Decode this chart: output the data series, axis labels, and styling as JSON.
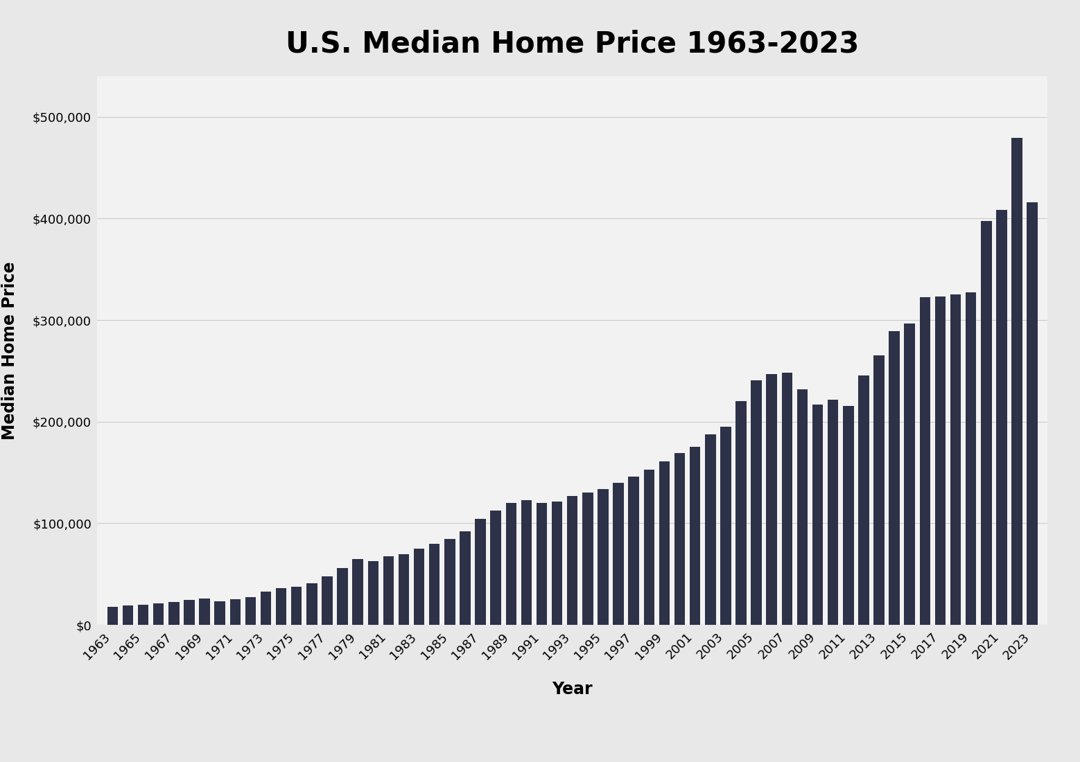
{
  "title": "U.S. Median Home Price 1963-2023",
  "xlabel": "Year",
  "ylabel": "Median Home Price",
  "background_color": "#e8e8e8",
  "plot_background_color": "#f2f2f2",
  "bar_color": "#2e3248",
  "years": [
    1963,
    1964,
    1965,
    1966,
    1967,
    1968,
    1969,
    1970,
    1971,
    1972,
    1973,
    1974,
    1975,
    1976,
    1977,
    1978,
    1979,
    1980,
    1981,
    1982,
    1983,
    1984,
    1985,
    1986,
    1987,
    1988,
    1989,
    1990,
    1991,
    1992,
    1993,
    1994,
    1995,
    1996,
    1997,
    1998,
    1999,
    2000,
    2001,
    2002,
    2003,
    2004,
    2005,
    2006,
    2007,
    2008,
    2009,
    2010,
    2011,
    2012,
    2013,
    2014,
    2015,
    2016,
    2017,
    2018,
    2019,
    2020,
    2021,
    2022,
    2023
  ],
  "prices": [
    18000,
    19300,
    20000,
    21400,
    22700,
    24400,
    25600,
    23400,
    25200,
    27600,
    32500,
    35900,
    37300,
    40800,
    47900,
    55700,
    65000,
    62900,
    67800,
    69300,
    75300,
    80000,
    84300,
    92000,
    104500,
    112500,
    120000,
    122900,
    120000,
    121500,
    126500,
    130000,
    133900,
    140000,
    146000,
    152500,
    161000,
    169000,
    175200,
    187600,
    195000,
    220000,
    240900,
    246500,
    247900,
    232100,
    216700,
    221800,
    215600,
    245400,
    265500,
    288900,
    296400,
    322500,
    323000,
    325000,
    327100,
    397400,
    408100,
    479500,
    416100
  ],
  "yticks": [
    0,
    100000,
    200000,
    300000,
    400000,
    500000
  ],
  "ytick_labels": [
    "$0",
    "$100,000",
    "$200,000",
    "$300,000",
    "$400,000",
    "$500,000"
  ],
  "xtick_years": [
    1963,
    1965,
    1967,
    1969,
    1971,
    1973,
    1975,
    1977,
    1979,
    1981,
    1983,
    1985,
    1987,
    1989,
    1991,
    1993,
    1995,
    1997,
    1999,
    2001,
    2003,
    2005,
    2007,
    2009,
    2011,
    2013,
    2015,
    2017,
    2019,
    2021,
    2023
  ],
  "ylim": [
    0,
    540000
  ],
  "title_fontsize": 30,
  "axis_label_fontsize": 17,
  "tick_fontsize": 13,
  "title_fontweight": "bold",
  "axis_label_fontweight": "bold",
  "grid_color": "#cccccc",
  "grid_linewidth": 0.8
}
